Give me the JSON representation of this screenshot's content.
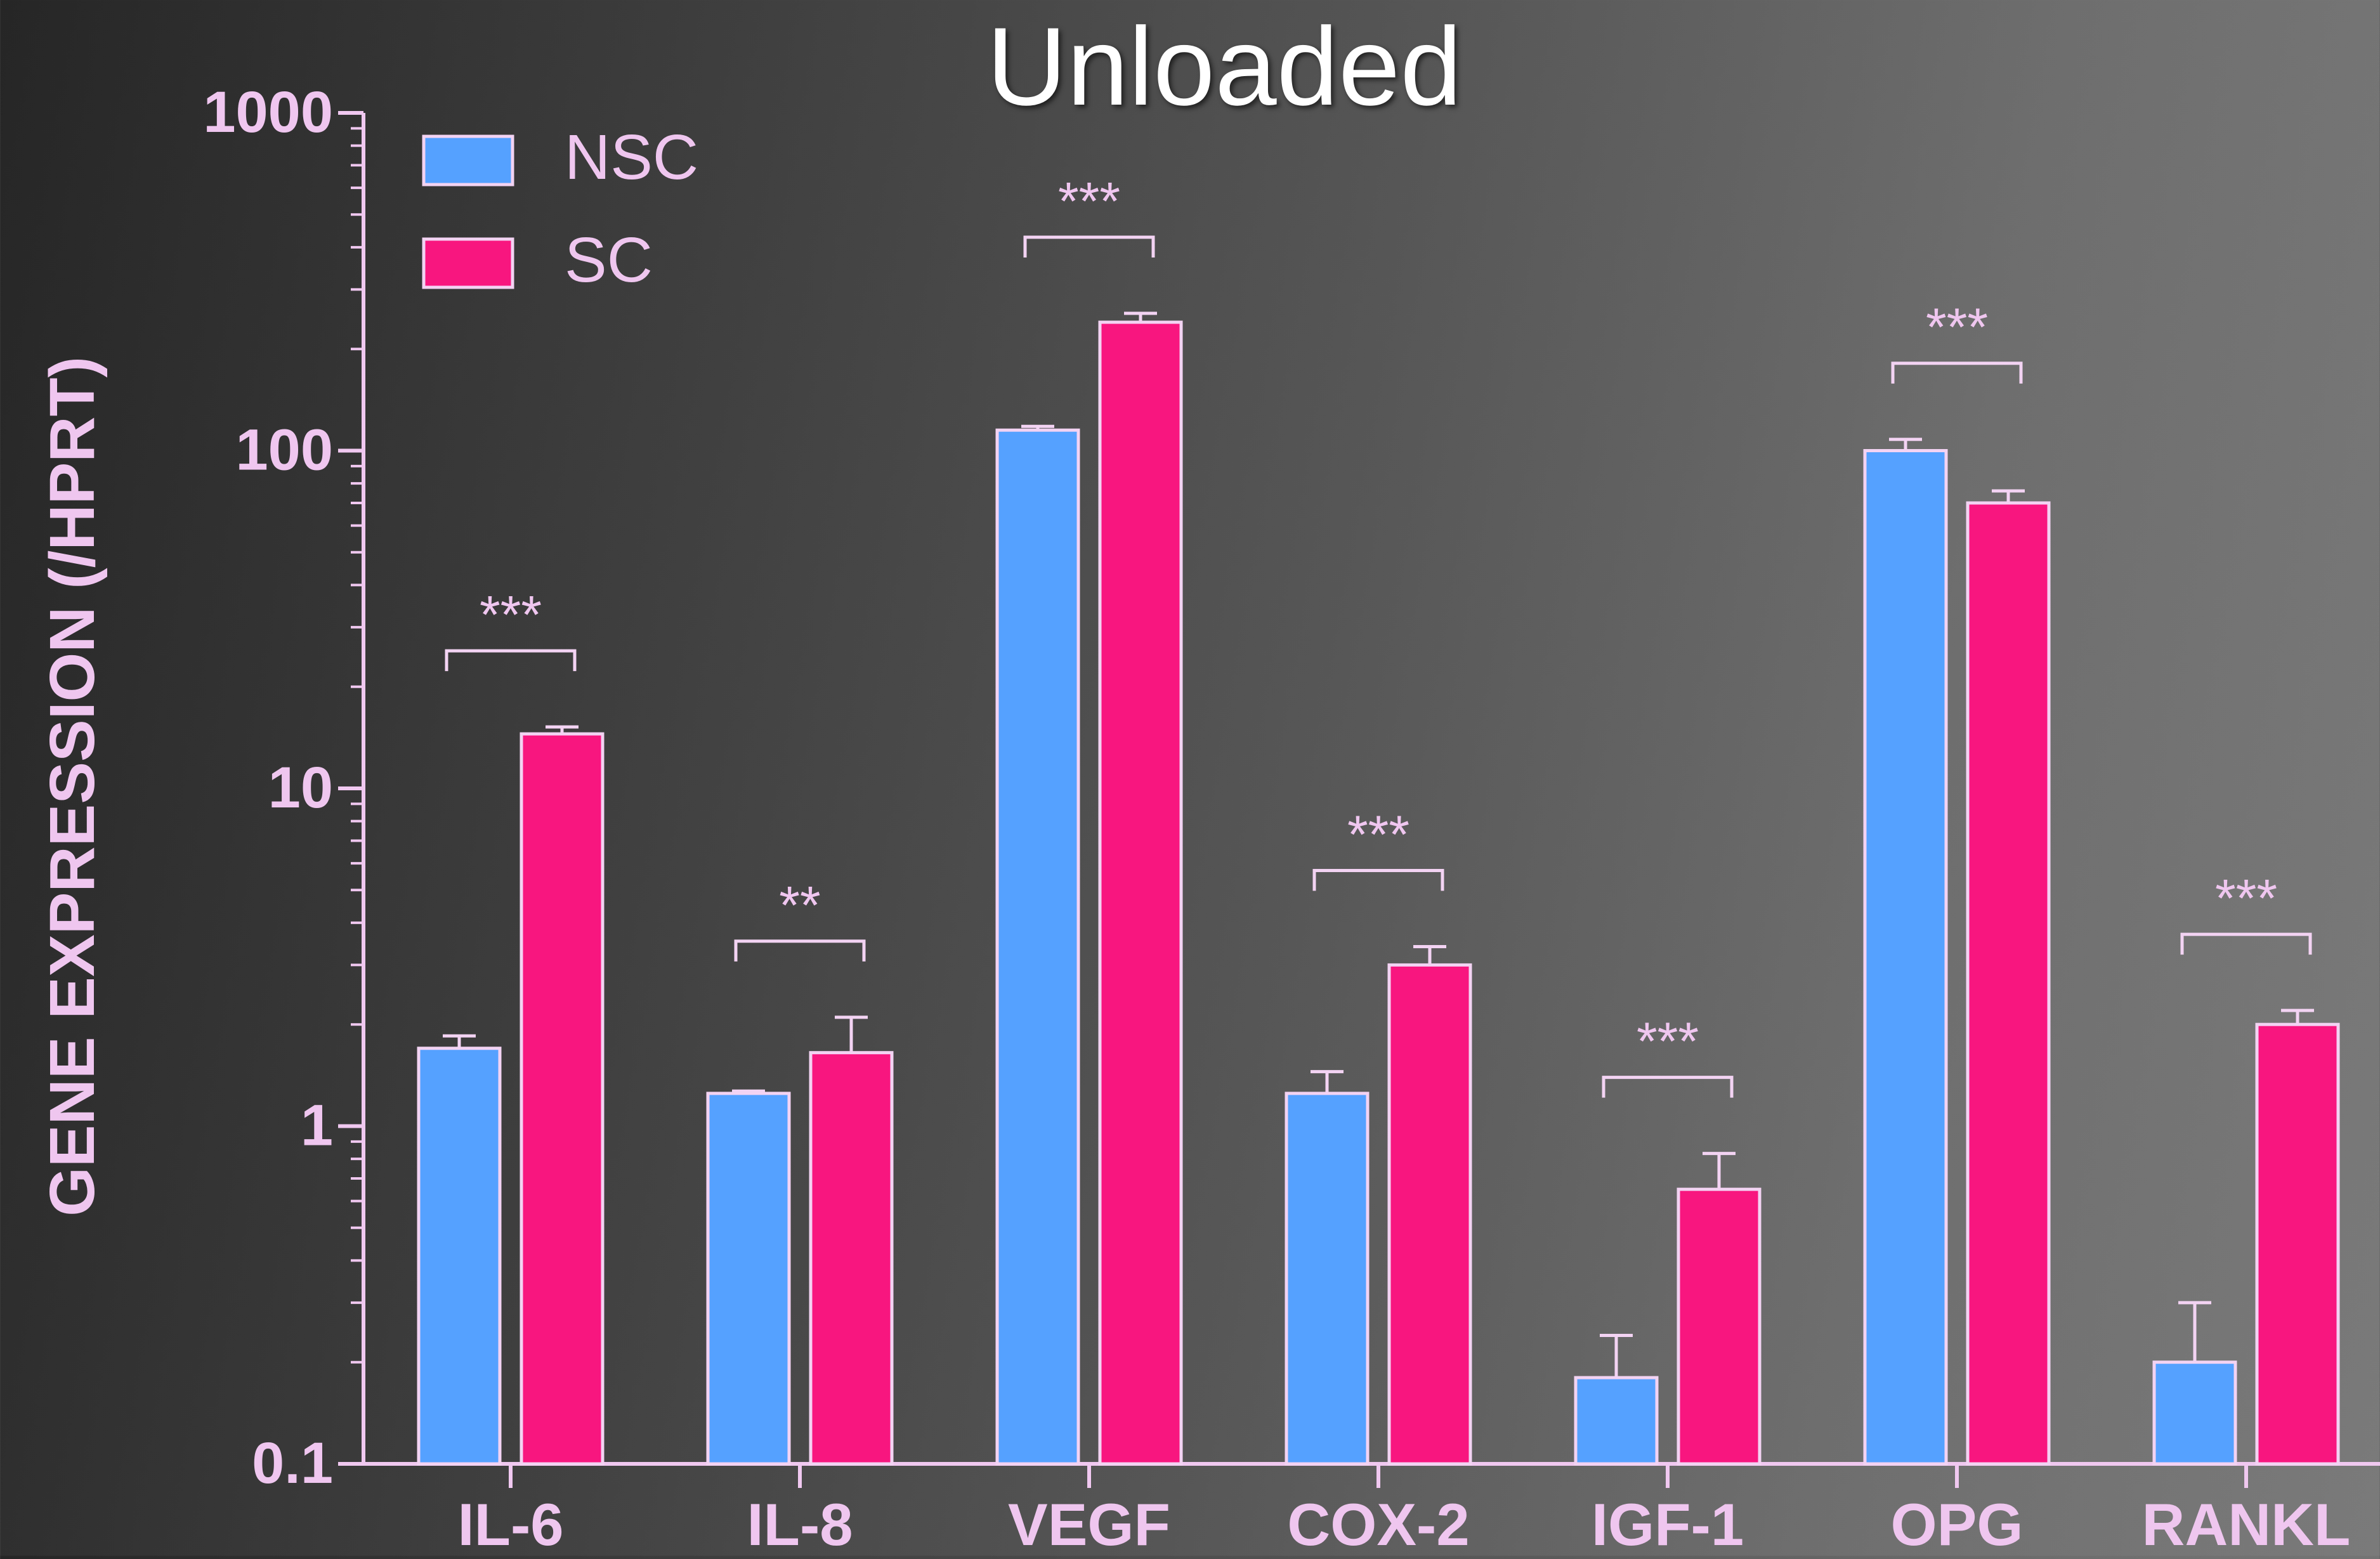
{
  "chart_data": {
    "type": "bar",
    "title": "Unloaded",
    "ylabel": "GENE EXPRESSION (/HPRT)",
    "xlabel": "",
    "yscale": "log",
    "ylim": [
      0.1,
      1000
    ],
    "ytick_labels": [
      "0.1",
      "1",
      "10",
      "100",
      "1000"
    ],
    "categories": [
      "IL-6",
      "IL-8",
      "VEGF",
      "COX-2",
      "IGF-1",
      "OPG",
      "RANKL"
    ],
    "series": [
      {
        "name": "NSC",
        "color": "#55a1ff",
        "values": [
          1.7,
          1.25,
          115,
          1.25,
          0.18,
          100,
          0.2
        ],
        "error_upper": [
          1.85,
          1.27,
          118,
          1.45,
          0.24,
          108,
          0.3
        ]
      },
      {
        "name": "SC",
        "color": "#f8167f",
        "values": [
          14.5,
          1.65,
          240,
          3.0,
          0.65,
          70,
          2.0
        ],
        "error_upper": [
          15.2,
          2.1,
          255,
          3.4,
          0.83,
          76,
          2.2
        ]
      }
    ],
    "significance": [
      "***",
      "**",
      "***",
      "***",
      "***",
      "***",
      "***"
    ],
    "legend": {
      "position": "top-left",
      "entries": [
        {
          "label": "NSC",
          "color": "#55a1ff"
        },
        {
          "label": "SC",
          "color": "#f8167f"
        }
      ]
    },
    "grid": false,
    "axis_color": "#f0c8f0",
    "bar_edge_color": "#f3d3f3",
    "title_color": "#ffffff",
    "label_color": "#efc6ef"
  }
}
